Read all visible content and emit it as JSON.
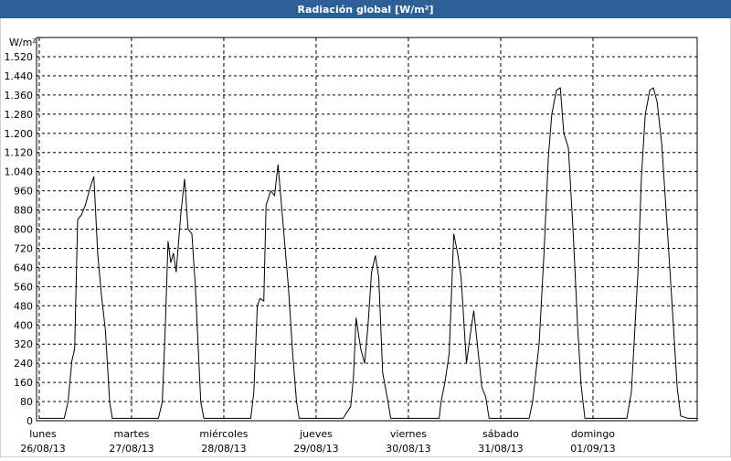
{
  "chart_data": {
    "type": "line",
    "title": "Radiación global [W/m²]",
    "y_label": "W/m²",
    "x": [
      0,
      6.5,
      7.5,
      8.5,
      9.2,
      10,
      11,
      12,
      13,
      14.2,
      15.2,
      16.2,
      17.2,
      18.3,
      19,
      31,
      32,
      32.8,
      33.5,
      34.2,
      34.9,
      35.6,
      36.8,
      37.8,
      38.7,
      39.7,
      40.6,
      42,
      42.8,
      55,
      55.8,
      56.7,
      57.4,
      58.4,
      59,
      60.2,
      61.2,
      62.1,
      63.1,
      64.8,
      65.9,
      66.9,
      67.6,
      79,
      81,
      81.7,
      82.4,
      83.6,
      84.6,
      85.5,
      86.4,
      87.4,
      88.3,
      89.3,
      90.7,
      91.4,
      104,
      104.5,
      105.5,
      106.6,
      107.8,
      108.8,
      109.7,
      111.1,
      112.1,
      113,
      114.2,
      115.1,
      116.1,
      117,
      127.4,
      128.3,
      130,
      131.2,
      132.4,
      133.3,
      134.5,
      135.5,
      136.4,
      137.6,
      138.8,
      140,
      140.9,
      141.9,
      152.8,
      154,
      155.7,
      156.6,
      157.6,
      158.8,
      159.7,
      160.7,
      161.9,
      163.5,
      164.7,
      165.9,
      166.8,
      168.7,
      171
    ],
    "series": [
      {
        "name": "Radiación global",
        "color": "#000000",
        "values": [
          10,
          10,
          80,
          250,
          300,
          840,
          860,
          900,
          960,
          1020,
          700,
          520,
          380,
          80,
          10,
          10,
          80,
          400,
          750,
          660,
          700,
          620,
          860,
          1010,
          800,
          780,
          560,
          80,
          10,
          10,
          120,
          480,
          510,
          500,
          900,
          960,
          940,
          1070,
          880,
          560,
          280,
          80,
          10,
          10,
          60,
          180,
          430,
          300,
          240,
          400,
          620,
          690,
          600,
          200,
          80,
          10,
          10,
          80,
          160,
          280,
          780,
          700,
          600,
          240,
          360,
          460,
          280,
          140,
          100,
          10,
          10,
          80,
          320,
          680,
          1100,
          1280,
          1380,
          1390,
          1200,
          1140,
          800,
          400,
          150,
          10,
          10,
          120,
          620,
          1020,
          1280,
          1380,
          1390,
          1330,
          1150,
          760,
          450,
          140,
          20,
          10,
          10
        ]
      }
    ],
    "xlim": [
      -0.7,
      171.1
    ],
    "xticks": [
      {
        "value": 0,
        "label": "lunes",
        "date": "26/08/13"
      },
      {
        "value": 24,
        "label": "martes",
        "date": "27/08/13"
      },
      {
        "value": 48,
        "label": "miércoles",
        "date": "28/08/13"
      },
      {
        "value": 72,
        "label": "jueves",
        "date": "29/08/13"
      },
      {
        "value": 96,
        "label": "viernes",
        "date": "30/08/13"
      },
      {
        "value": 120,
        "label": "sábado",
        "date": "31/08/13"
      },
      {
        "value": 144,
        "label": "domingo",
        "date": "01/09/13"
      }
    ],
    "ylim": [
      0,
      1600
    ],
    "yticks": [
      0,
      80,
      160,
      240,
      320,
      400,
      480,
      560,
      640,
      720,
      800,
      880,
      960,
      {
        "value": 1040,
        "label": "1.040"
      },
      {
        "value": 1120,
        "label": "1.120"
      },
      {
        "value": 1200,
        "label": "1.200"
      },
      {
        "value": 1280,
        "label": "1.280"
      },
      {
        "value": 1360,
        "label": "1.360"
      },
      {
        "value": 1440,
        "label": "1.440"
      },
      {
        "value": 1520,
        "label": "1.520"
      }
    ],
    "grid": true
  }
}
